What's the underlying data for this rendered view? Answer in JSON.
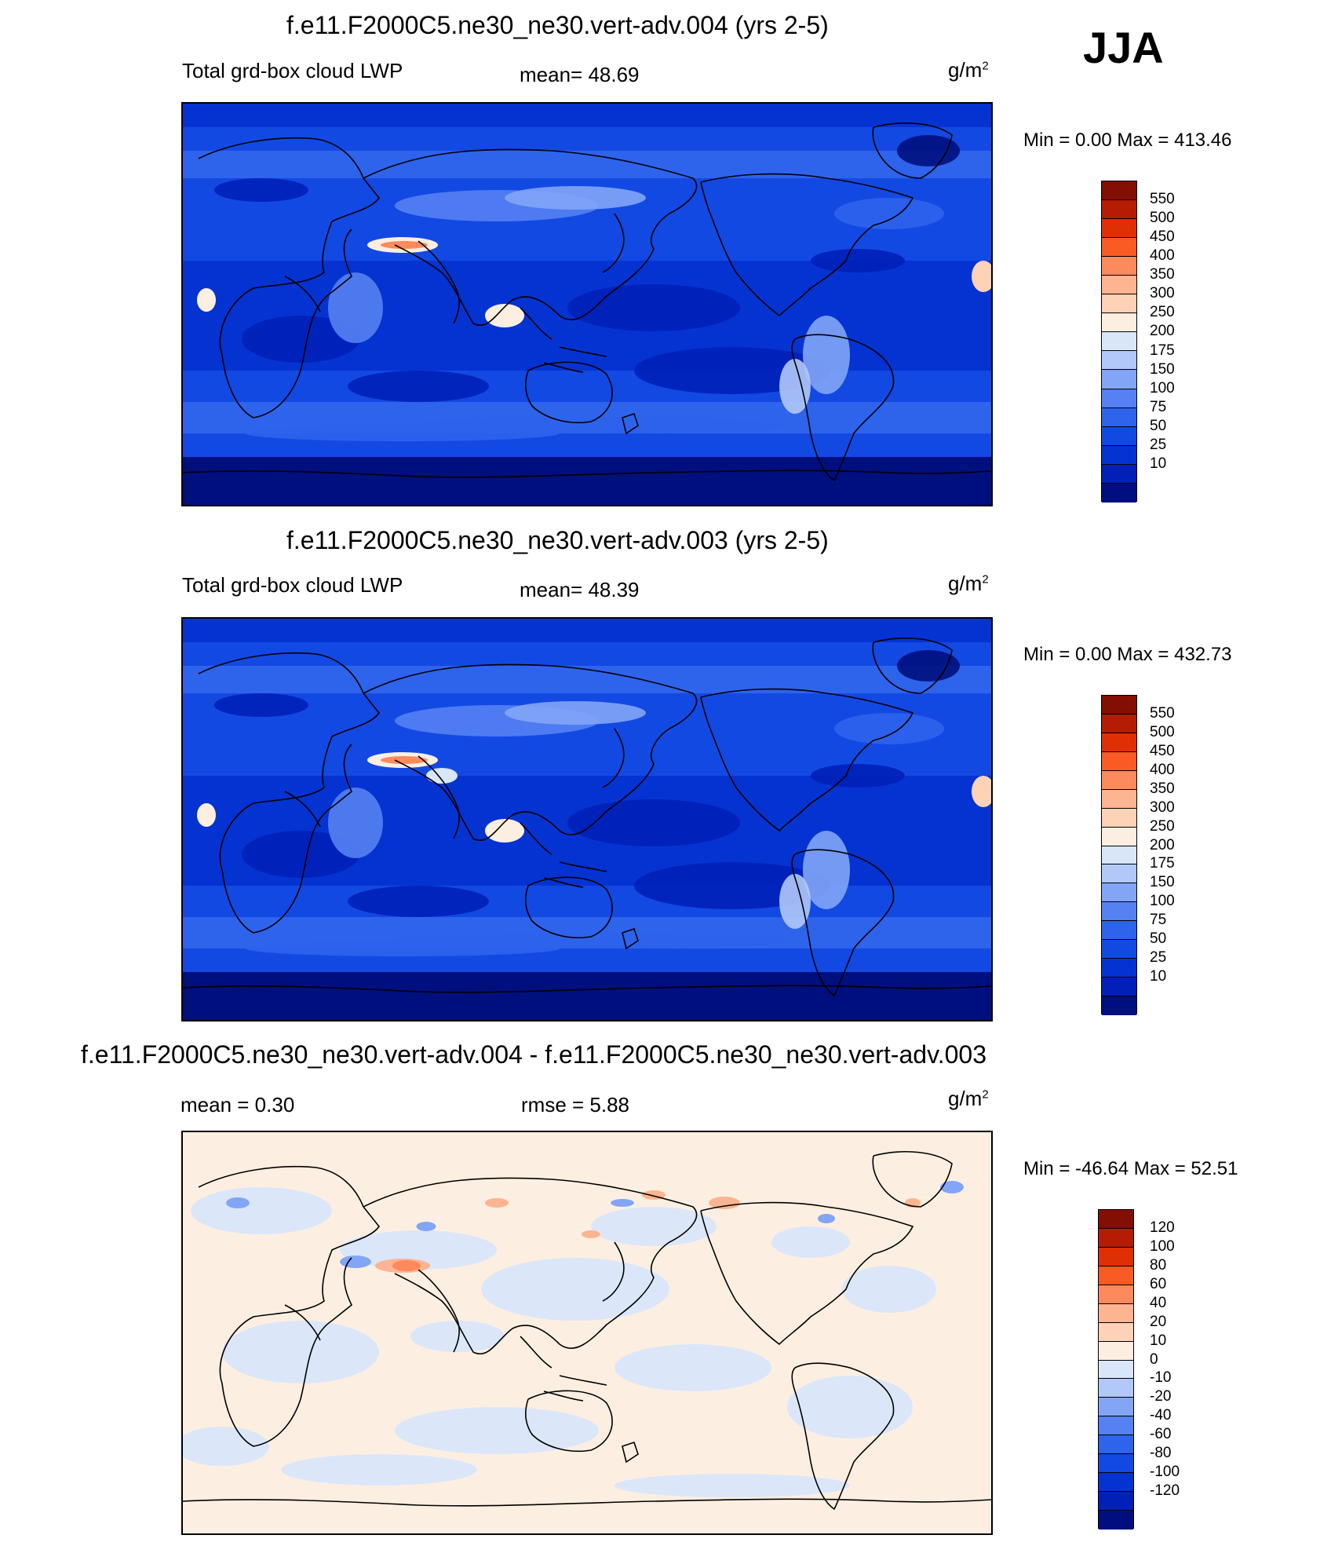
{
  "season": "JJA",
  "colors": {
    "abs_scale": [
      "#000f7e",
      "#0020b8",
      "#0533d1",
      "#1349e3",
      "#2e63ec",
      "#5581f2",
      "#82a5f6",
      "#b1c8f8",
      "#d9e6fa",
      "#fcefe2",
      "#fdd2b7",
      "#fdb491",
      "#fd8a5c",
      "#fa5b25",
      "#e02f05",
      "#b51c03",
      "#830e02"
    ],
    "diff_scale": [
      "#000f7e",
      "#0020b8",
      "#0533d1",
      "#1349e3",
      "#2e63ec",
      "#5581f2",
      "#82a5f6",
      "#b1c8f8",
      "#d9e6fa",
      "#fcefe2",
      "#fdd2b7",
      "#fdb491",
      "#fd8a5c",
      "#fa5b25",
      "#e02f05",
      "#b51c03",
      "#830e02"
    ],
    "ocean_deep": "#0a1f8f",
    "coastline": "#000000"
  },
  "panels": [
    {
      "title": "f.e11.F2000C5.ne30_ne30.vert-adv.004 (yrs 2-5)",
      "left_label": "Total grd-box cloud LWP",
      "center_label": "mean=  48.69",
      "units": "g/m",
      "units_sup": "2",
      "minmax": "Min =    0.00 Max = 413.46",
      "colorbar_ticks": [
        "550",
        "500",
        "450",
        "400",
        "350",
        "300",
        "250",
        "200",
        "175",
        "150",
        "100",
        "75",
        "50",
        "25",
        "10"
      ],
      "kind": "abs"
    },
    {
      "title": "f.e11.F2000C5.ne30_ne30.vert-adv.003 (yrs 2-5)",
      "left_label": "Total grd-box cloud LWP",
      "center_label": "mean=  48.39",
      "units": "g/m",
      "units_sup": "2",
      "minmax": "Min =    0.00 Max = 432.73",
      "colorbar_ticks": [
        "550",
        "500",
        "450",
        "400",
        "350",
        "300",
        "250",
        "200",
        "175",
        "150",
        "100",
        "75",
        "50",
        "25",
        "10"
      ],
      "kind": "abs"
    },
    {
      "title": "f.e11.F2000C5.ne30_ne30.vert-adv.004 - f.e11.F2000C5.ne30_ne30.vert-adv.003",
      "left_label": "mean =   0.30",
      "center_label": "rmse =   5.88",
      "units": "g/m",
      "units_sup": "2",
      "minmax": "Min = -46.64 Max =  52.51",
      "colorbar_ticks": [
        "120",
        "100",
        "80",
        "60",
        "40",
        "20",
        "10",
        "0",
        "-10",
        "-20",
        "-40",
        "-60",
        "-80",
        "-100",
        "-120"
      ],
      "kind": "diff"
    }
  ]
}
